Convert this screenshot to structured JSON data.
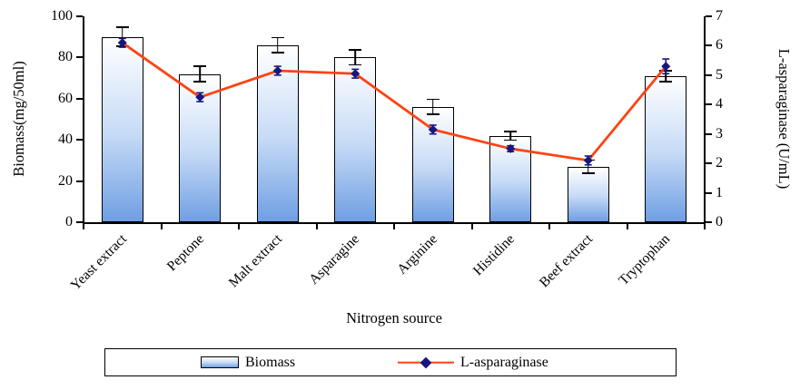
{
  "chart_data": {
    "type": "bar+line",
    "title": "",
    "categories": [
      "Yeast extract",
      "Peptone",
      "Malt extract",
      "Asparagine",
      "Arginine",
      "Histidine",
      "Beef extract",
      "Tryptophan"
    ],
    "series": [
      {
        "name": "Biomass",
        "type": "bar",
        "axis": "left",
        "values": [
          90,
          72,
          86,
          80,
          56,
          42,
          27,
          71
        ],
        "errors": [
          5,
          4,
          4,
          4,
          4,
          2.5,
          3.5,
          3
        ]
      },
      {
        "name": "L-asparaginase",
        "type": "line",
        "axis": "right",
        "values": [
          6.1,
          4.25,
          5.15,
          5.05,
          3.15,
          2.5,
          2.1,
          5.3
        ],
        "errors": [
          0.15,
          0.15,
          0.15,
          0.15,
          0.15,
          0.1,
          0.15,
          0.25
        ]
      }
    ],
    "xlabel": "Nitrogen source",
    "ylabel_left": "Biomass(mg/50ml)",
    "ylabel_right": "L-asparaginase (U/mL)",
    "ylim_left": [
      0,
      100
    ],
    "ytick_step_left": 20,
    "ylim_right": [
      0,
      7
    ],
    "ytick_step_right": 1,
    "grid": false,
    "legend_position": "bottom",
    "colors": {
      "bar_gradient_top": "#ffffff",
      "bar_gradient_mid": "#c7dbf6",
      "bar_gradient_bottom": "#6f9fe3",
      "bar_border": "#000000",
      "line": "#fc4312",
      "marker": "#16167e",
      "error_bar_bar": "#000000",
      "error_bar_line": "#16167e",
      "axis": "#000000"
    }
  }
}
